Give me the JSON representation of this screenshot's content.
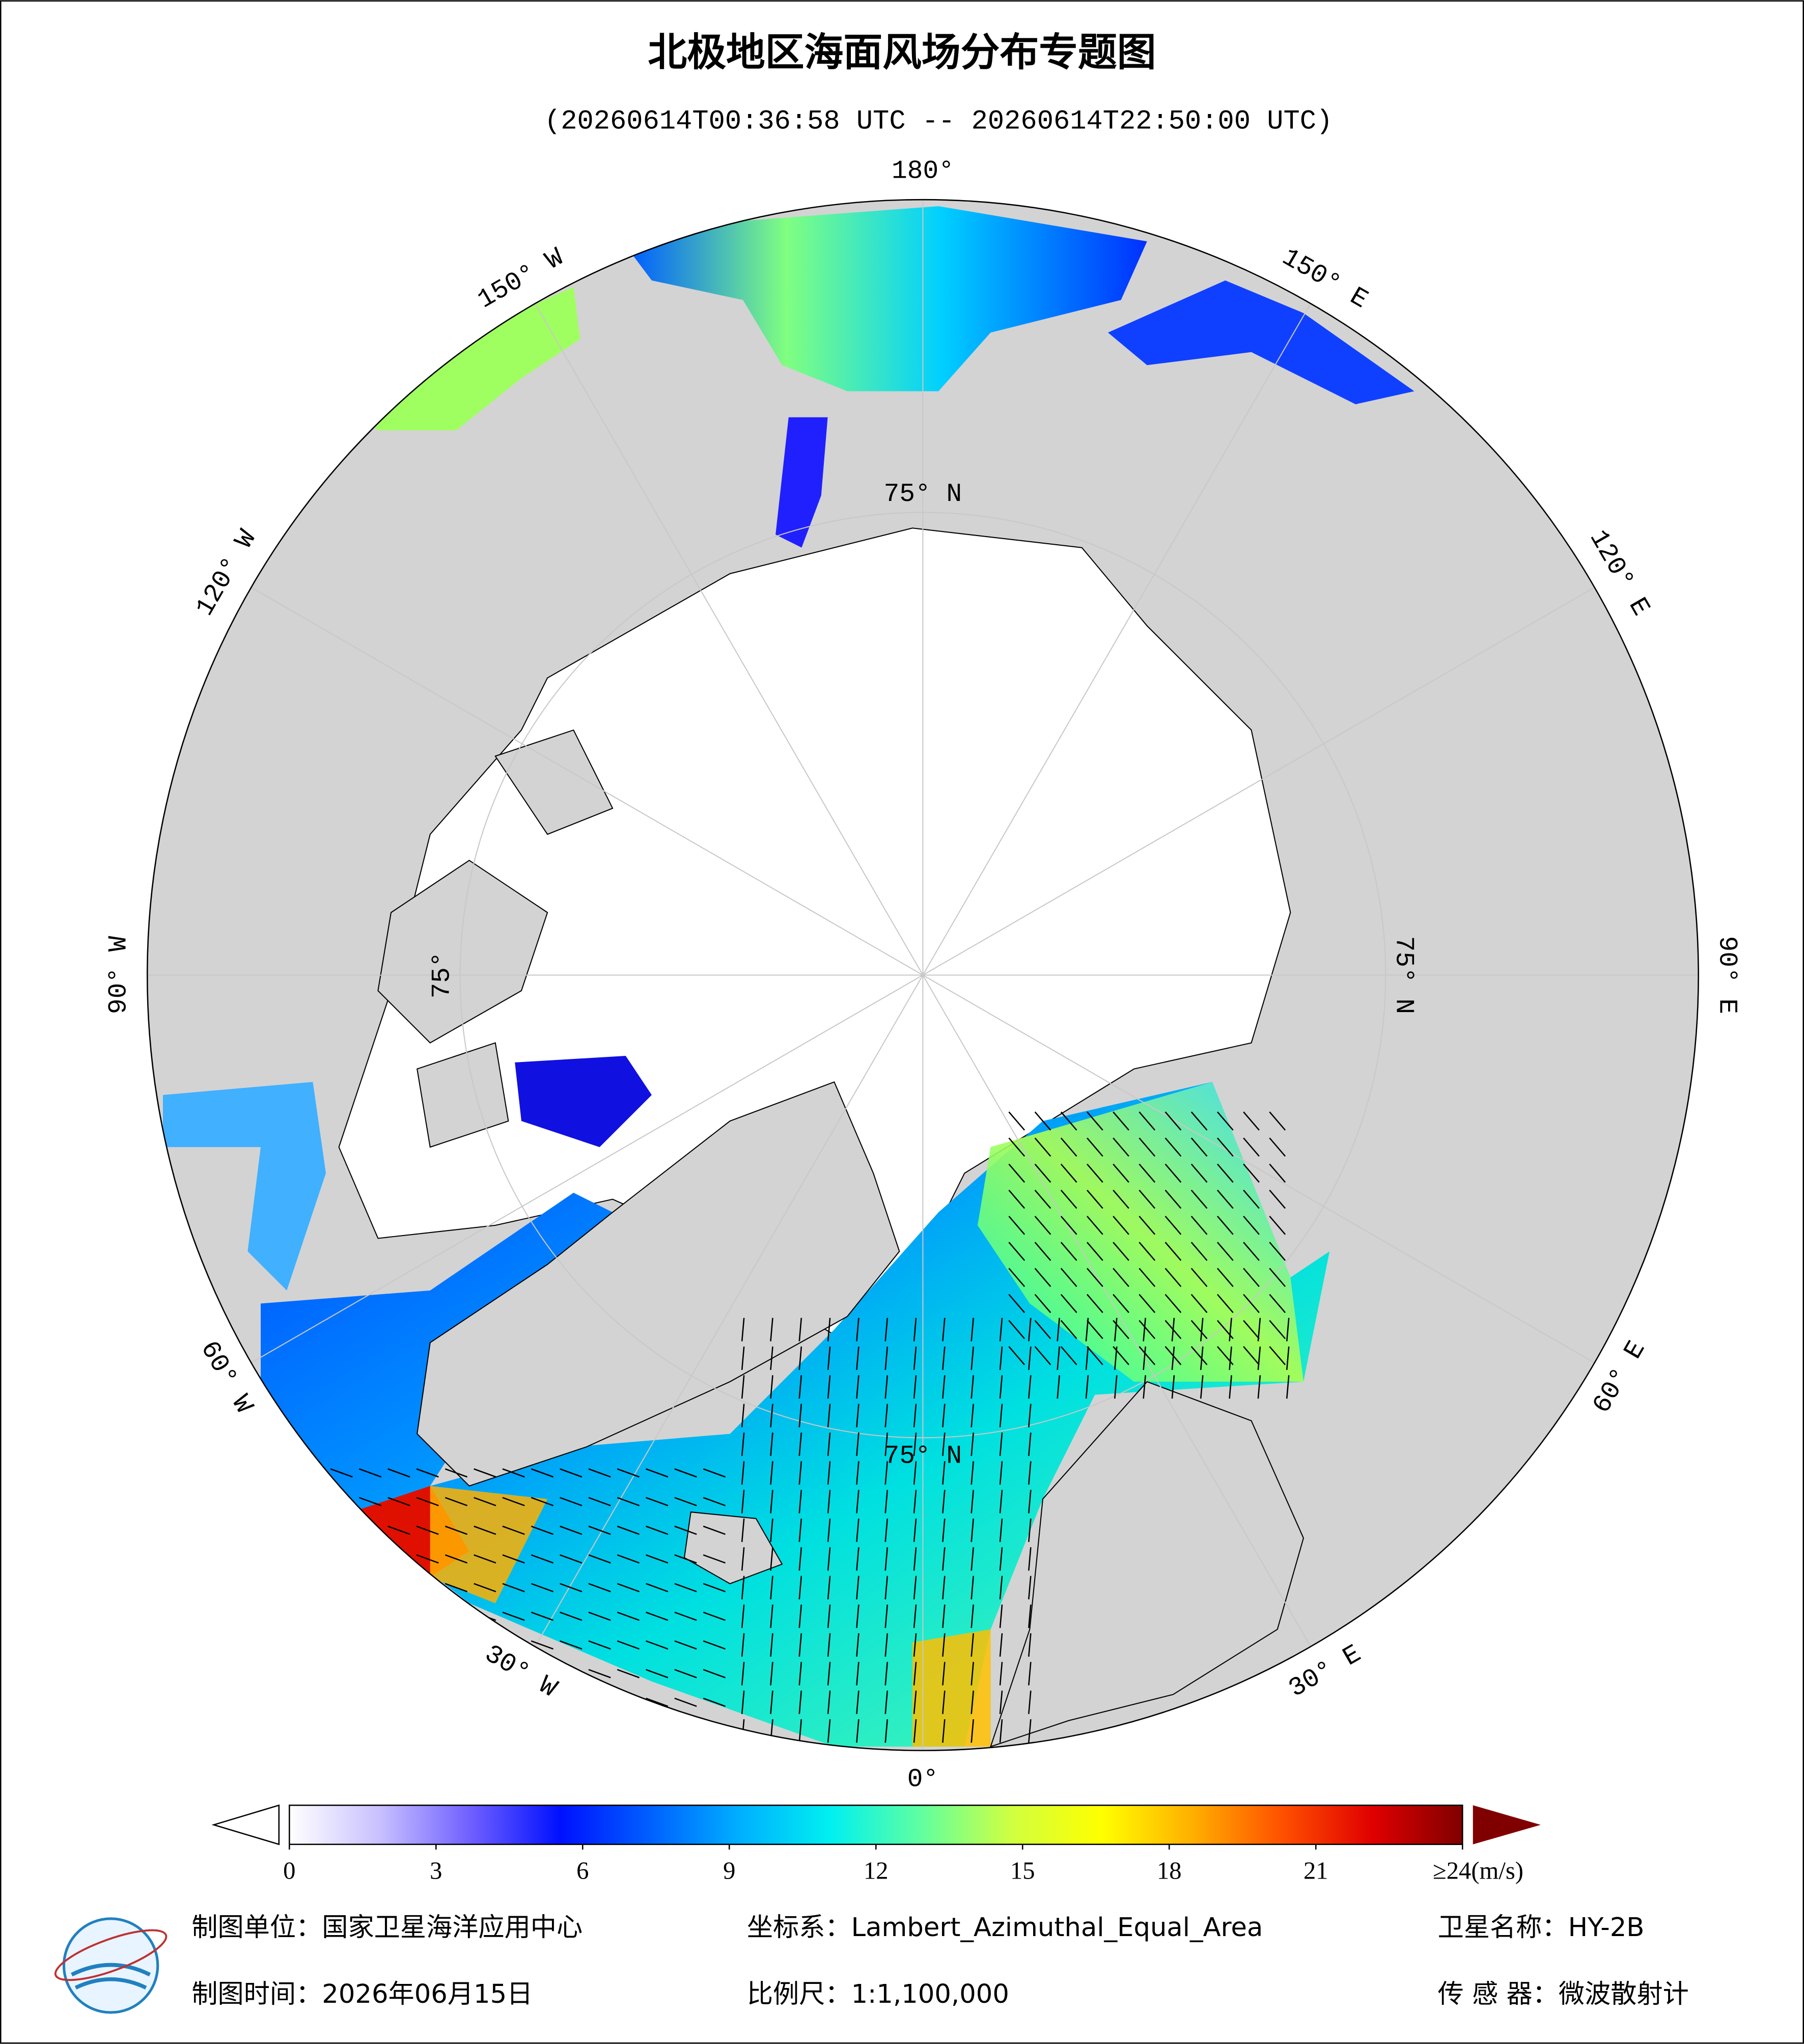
{
  "header": {
    "title": "北极地区海面风场分布专题图",
    "subtitle": "(20260614T00:36:58 UTC -- 20260614T22:50:00 UTC)"
  },
  "map": {
    "projection": "polar",
    "lon_ticks": [
      {
        "value": 180,
        "label": "180°"
      },
      {
        "value": 150,
        "label": "150° E"
      },
      {
        "value": 120,
        "label": "120° E"
      },
      {
        "value": 90,
        "label": "90° E"
      },
      {
        "value": 60,
        "label": "60° E"
      },
      {
        "value": 30,
        "label": "30° E"
      },
      {
        "value": 0,
        "label": "0°"
      },
      {
        "value": -30,
        "label": "30° W"
      },
      {
        "value": -60,
        "label": "60° W"
      },
      {
        "value": -90,
        "label": "90° W"
      },
      {
        "value": -120,
        "label": "120° W"
      },
      {
        "value": -150,
        "label": "150° W"
      }
    ],
    "lat_ticks": [
      {
        "value": 75,
        "label": "75° N"
      }
    ],
    "lat_label_extra": [
      "75° N",
      "75° N",
      "75°"
    ]
  },
  "colorbar": {
    "lim": [
      0,
      24
    ],
    "ticks": [
      0,
      3,
      6,
      9,
      12,
      15,
      18,
      21,
      {
        "value": 24,
        "label": "≥24(m/s)"
      }
    ],
    "colors": [
      "#ffffff",
      "#c8c0ff",
      "#7060ff",
      "#0010ff",
      "#0060ff",
      "#00b0ff",
      "#00f0f0",
      "#60ffa0",
      "#d0ff40",
      "#ffff00",
      "#ffb000",
      "#ff5000",
      "#e00000",
      "#800000"
    ]
  },
  "footer": {
    "unit": "制图单位：国家卫星海洋应用中心",
    "crs": "坐标系：Lambert_Azimuthal_Equal_Area",
    "satellite": "卫星名称：HY-2B",
    "date": "制图时间：2026年06月15日",
    "scale": "比例尺：1:1,100,000",
    "sensor": "传 感 器：微波散射计"
  }
}
